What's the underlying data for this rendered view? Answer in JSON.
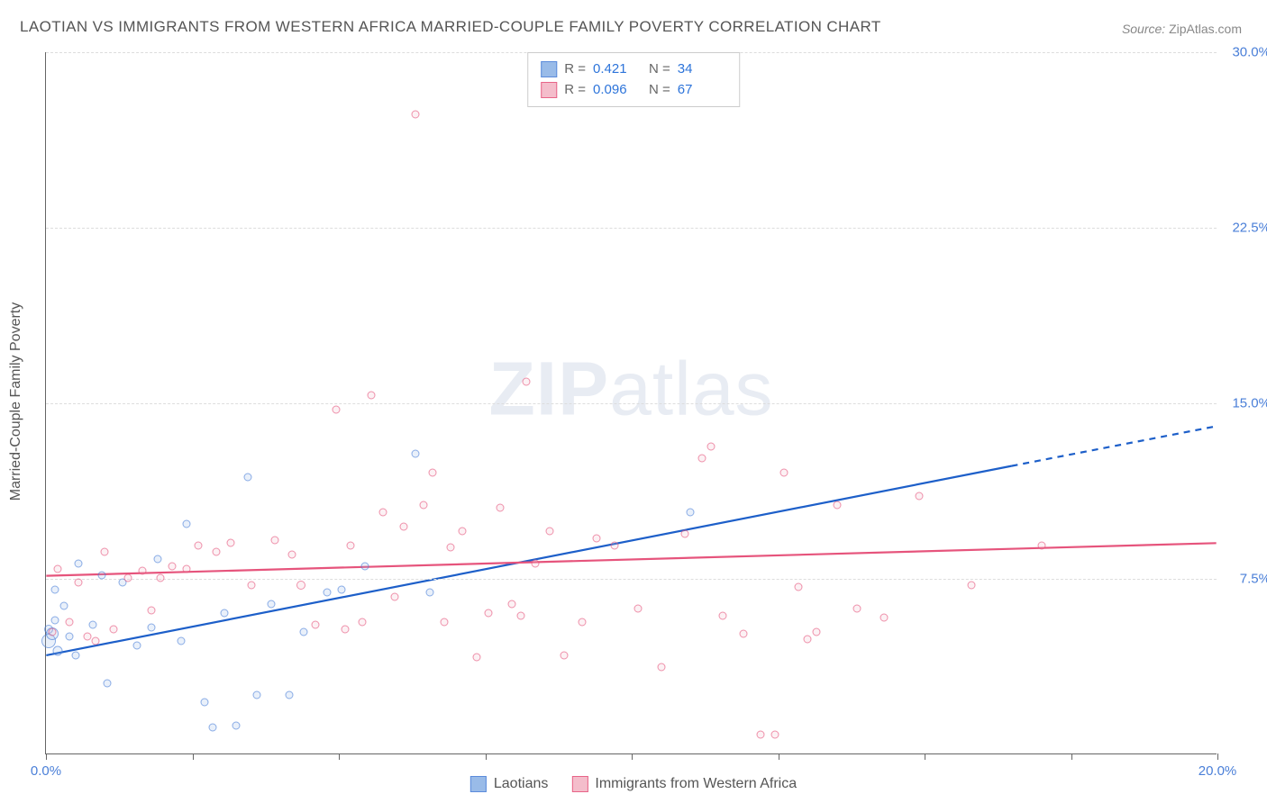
{
  "title": "LAOTIAN VS IMMIGRANTS FROM WESTERN AFRICA MARRIED-COUPLE FAMILY POVERTY CORRELATION CHART",
  "source_label": "Source:",
  "source_value": "ZipAtlas.com",
  "ylabel": "Married-Couple Family Poverty",
  "watermark_a": "ZIP",
  "watermark_b": "atlas",
  "chart": {
    "type": "scatter",
    "xlim": [
      0,
      20
    ],
    "ylim": [
      0,
      30
    ],
    "grid_color": "#dddddd",
    "axis_color": "#666666",
    "background_color": "#ffffff",
    "tick_label_color": "#4a7fd8",
    "x_ticks": [
      0,
      2.5,
      5,
      7.5,
      10,
      12.5,
      15,
      17.5,
      20
    ],
    "x_tick_labels": {
      "0": "0.0%",
      "20": "20.0%"
    },
    "y_ticks": [
      7.5,
      15.0,
      22.5,
      30.0
    ],
    "y_tick_labels": [
      "7.5%",
      "15.0%",
      "22.5%",
      "30.0%"
    ],
    "title_fontsize": 17,
    "label_fontsize": 16,
    "tick_fontsize": 15,
    "marker_size_default": 18,
    "marker_border_width": 1.5,
    "marker_fill_opacity": 0.3
  },
  "series": [
    {
      "key": "laotians",
      "name": "Laotians",
      "color_fill": "#8fb4e6",
      "color_stroke": "#4a7fd8",
      "r_value": "0.421",
      "n_value": "34",
      "trend": {
        "x1": 0,
        "y1": 4.2,
        "x2": 16.5,
        "y2": 12.3,
        "dash_from_x": 16.5,
        "x_end": 20,
        "y_end": 14.0,
        "stroke": "#1d5fc9",
        "width": 2.2
      },
      "points": [
        {
          "x": 0.05,
          "y": 4.8,
          "r": 16
        },
        {
          "x": 0.05,
          "y": 5.3,
          "r": 10
        },
        {
          "x": 0.1,
          "y": 5.1,
          "r": 14
        },
        {
          "x": 0.15,
          "y": 7.0,
          "r": 9
        },
        {
          "x": 0.15,
          "y": 5.7,
          "r": 9
        },
        {
          "x": 0.2,
          "y": 4.4,
          "r": 11
        },
        {
          "x": 0.3,
          "y": 6.3,
          "r": 9
        },
        {
          "x": 0.4,
          "y": 5.0,
          "r": 9
        },
        {
          "x": 0.5,
          "y": 4.2,
          "r": 9
        },
        {
          "x": 0.55,
          "y": 8.1,
          "r": 9
        },
        {
          "x": 0.8,
          "y": 5.5,
          "r": 9
        },
        {
          "x": 0.95,
          "y": 7.6,
          "r": 9
        },
        {
          "x": 1.05,
          "y": 3.0,
          "r": 9
        },
        {
          "x": 1.3,
          "y": 7.3,
          "r": 9
        },
        {
          "x": 1.55,
          "y": 4.6,
          "r": 9
        },
        {
          "x": 1.8,
          "y": 5.4,
          "r": 9
        },
        {
          "x": 1.9,
          "y": 8.3,
          "r": 9
        },
        {
          "x": 2.3,
          "y": 4.8,
          "r": 9
        },
        {
          "x": 2.4,
          "y": 9.8,
          "r": 9
        },
        {
          "x": 2.7,
          "y": 2.2,
          "r": 9
        },
        {
          "x": 2.85,
          "y": 1.1,
          "r": 9
        },
        {
          "x": 3.05,
          "y": 6.0,
          "r": 9
        },
        {
          "x": 3.25,
          "y": 1.2,
          "r": 9
        },
        {
          "x": 3.45,
          "y": 11.8,
          "r": 9
        },
        {
          "x": 3.6,
          "y": 2.5,
          "r": 9
        },
        {
          "x": 3.85,
          "y": 6.4,
          "r": 9
        },
        {
          "x": 4.15,
          "y": 2.5,
          "r": 9
        },
        {
          "x": 4.4,
          "y": 5.2,
          "r": 9
        },
        {
          "x": 4.8,
          "y": 6.9,
          "r": 9
        },
        {
          "x": 5.05,
          "y": 7.0,
          "r": 9
        },
        {
          "x": 5.45,
          "y": 8.0,
          "r": 9
        },
        {
          "x": 6.3,
          "y": 12.8,
          "r": 9
        },
        {
          "x": 6.55,
          "y": 6.9,
          "r": 9
        },
        {
          "x": 11.0,
          "y": 10.3,
          "r": 9
        }
      ]
    },
    {
      "key": "immigrants",
      "name": "Immigrants from Western Africa",
      "color_fill": "#f3b6c6",
      "color_stroke": "#e6547c",
      "r_value": "0.096",
      "n_value": "67",
      "trend": {
        "x1": 0,
        "y1": 7.6,
        "x2": 20,
        "y2": 9.0,
        "stroke": "#e6547c",
        "width": 2.2
      },
      "points": [
        {
          "x": 0.1,
          "y": 5.2,
          "r": 9
        },
        {
          "x": 0.2,
          "y": 7.9,
          "r": 9
        },
        {
          "x": 0.4,
          "y": 5.6,
          "r": 9
        },
        {
          "x": 0.55,
          "y": 7.3,
          "r": 9
        },
        {
          "x": 0.7,
          "y": 5.0,
          "r": 9
        },
        {
          "x": 0.85,
          "y": 4.8,
          "r": 9
        },
        {
          "x": 1.0,
          "y": 8.6,
          "r": 9
        },
        {
          "x": 1.15,
          "y": 5.3,
          "r": 9
        },
        {
          "x": 1.4,
          "y": 7.5,
          "r": 9
        },
        {
          "x": 1.65,
          "y": 7.8,
          "r": 9
        },
        {
          "x": 1.8,
          "y": 6.1,
          "r": 9
        },
        {
          "x": 1.95,
          "y": 7.5,
          "r": 9
        },
        {
          "x": 2.15,
          "y": 8.0,
          "r": 9
        },
        {
          "x": 2.4,
          "y": 7.9,
          "r": 9
        },
        {
          "x": 2.6,
          "y": 8.9,
          "r": 9
        },
        {
          "x": 2.9,
          "y": 8.6,
          "r": 9
        },
        {
          "x": 3.15,
          "y": 9.0,
          "r": 9
        },
        {
          "x": 3.5,
          "y": 7.2,
          "r": 9
        },
        {
          "x": 3.9,
          "y": 9.1,
          "r": 9
        },
        {
          "x": 4.2,
          "y": 8.5,
          "r": 9
        },
        {
          "x": 4.35,
          "y": 7.2,
          "r": 10
        },
        {
          "x": 4.6,
          "y": 5.5,
          "r": 9
        },
        {
          "x": 4.95,
          "y": 14.7,
          "r": 9
        },
        {
          "x": 5.1,
          "y": 5.3,
          "r": 9
        },
        {
          "x": 5.2,
          "y": 8.9,
          "r": 9
        },
        {
          "x": 5.4,
          "y": 5.6,
          "r": 9
        },
        {
          "x": 5.55,
          "y": 15.3,
          "r": 9
        },
        {
          "x": 5.75,
          "y": 10.3,
          "r": 9
        },
        {
          "x": 5.95,
          "y": 6.7,
          "r": 9
        },
        {
          "x": 6.1,
          "y": 9.7,
          "r": 9
        },
        {
          "x": 6.3,
          "y": 27.3,
          "r": 9
        },
        {
          "x": 6.45,
          "y": 10.6,
          "r": 9
        },
        {
          "x": 6.6,
          "y": 12.0,
          "r": 9
        },
        {
          "x": 6.8,
          "y": 5.6,
          "r": 9
        },
        {
          "x": 6.9,
          "y": 8.8,
          "r": 9
        },
        {
          "x": 7.1,
          "y": 9.5,
          "r": 9
        },
        {
          "x": 7.35,
          "y": 4.1,
          "r": 9
        },
        {
          "x": 7.55,
          "y": 6.0,
          "r": 9
        },
        {
          "x": 7.75,
          "y": 10.5,
          "r": 9
        },
        {
          "x": 7.95,
          "y": 6.4,
          "r": 9
        },
        {
          "x": 8.1,
          "y": 5.9,
          "r": 9
        },
        {
          "x": 8.2,
          "y": 15.9,
          "r": 9
        },
        {
          "x": 8.35,
          "y": 8.1,
          "r": 9
        },
        {
          "x": 8.6,
          "y": 9.5,
          "r": 9
        },
        {
          "x": 8.85,
          "y": 4.2,
          "r": 9
        },
        {
          "x": 9.15,
          "y": 5.6,
          "r": 9
        },
        {
          "x": 9.4,
          "y": 9.2,
          "r": 9
        },
        {
          "x": 9.7,
          "y": 8.9,
          "r": 9
        },
        {
          "x": 10.1,
          "y": 6.2,
          "r": 9
        },
        {
          "x": 10.5,
          "y": 3.7,
          "r": 9
        },
        {
          "x": 10.9,
          "y": 9.4,
          "r": 9
        },
        {
          "x": 11.2,
          "y": 12.6,
          "r": 9
        },
        {
          "x": 11.35,
          "y": 13.1,
          "r": 9
        },
        {
          "x": 11.55,
          "y": 5.9,
          "r": 9
        },
        {
          "x": 11.9,
          "y": 5.1,
          "r": 9
        },
        {
          "x": 12.2,
          "y": 0.8,
          "r": 9
        },
        {
          "x": 12.45,
          "y": 0.8,
          "r": 9
        },
        {
          "x": 12.6,
          "y": 12.0,
          "r": 9
        },
        {
          "x": 12.85,
          "y": 7.1,
          "r": 9
        },
        {
          "x": 13.15,
          "y": 5.2,
          "r": 9
        },
        {
          "x": 13.5,
          "y": 10.6,
          "r": 9
        },
        {
          "x": 13.85,
          "y": 6.2,
          "r": 9
        },
        {
          "x": 14.3,
          "y": 5.8,
          "r": 9
        },
        {
          "x": 14.9,
          "y": 11.0,
          "r": 9
        },
        {
          "x": 15.8,
          "y": 7.2,
          "r": 9
        },
        {
          "x": 17.0,
          "y": 8.9,
          "r": 9
        },
        {
          "x": 13.0,
          "y": 4.9,
          "r": 9
        }
      ]
    }
  ],
  "stats_legend": {
    "r_label": "R =",
    "n_label": "N ="
  },
  "bottom_legend": {
    "label_a": "Laotians",
    "label_b": "Immigrants from Western Africa"
  }
}
